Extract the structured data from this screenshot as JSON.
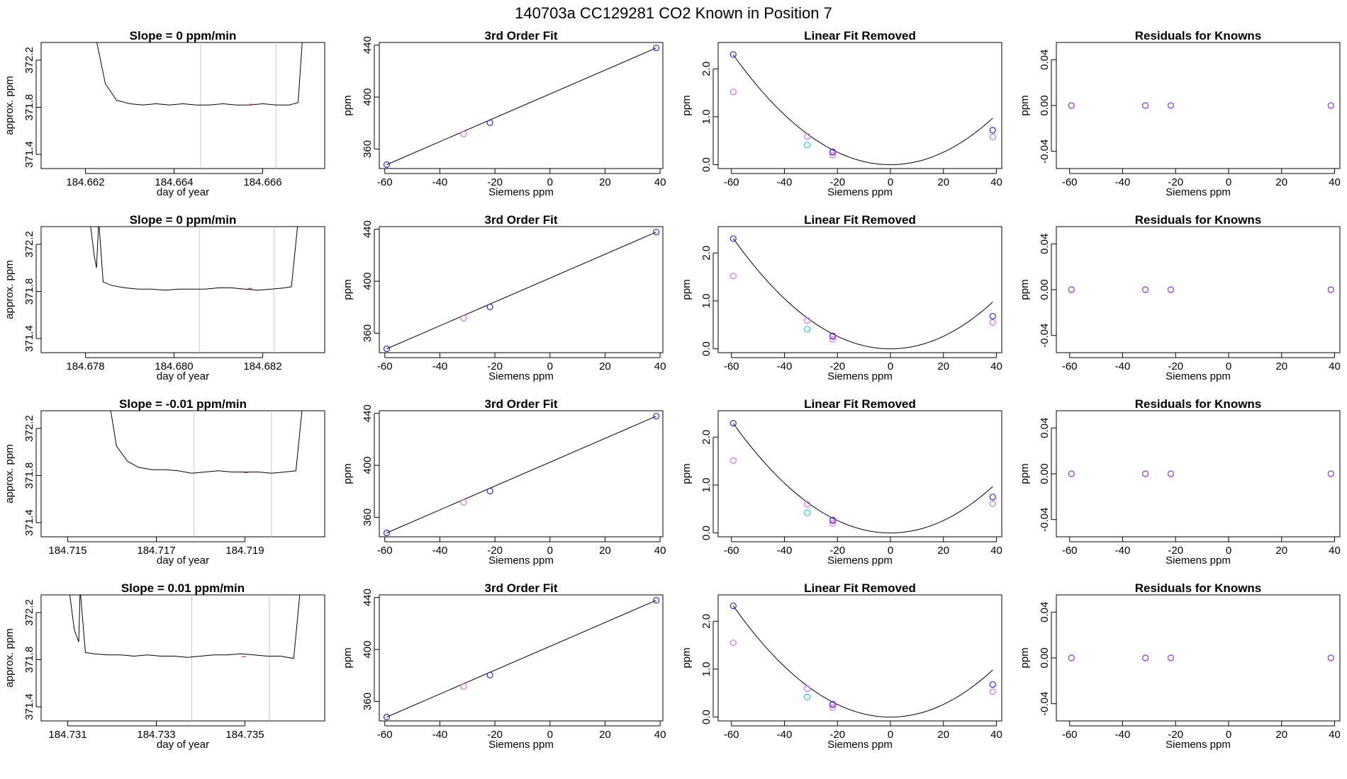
{
  "figure_title": "140703a      CC129281    CO2 Known in Position  7",
  "colors": {
    "line": "#000000",
    "vline": "#c8c8c8",
    "blue": "#2828d8",
    "magenta": "#d070e8",
    "cyan": "#30c0d8",
    "purple": "#9030d8",
    "red": "#e04040"
  },
  "chart_data": [
    {
      "type": "line",
      "title": "Slope =  0  ppm/min",
      "xlabel": "day of year",
      "ylabel": "approx. ppm",
      "xlim": [
        184.661,
        184.6674
      ],
      "ylim": [
        371.28,
        372.35
      ],
      "xticks": [
        184.662,
        184.664,
        184.666
      ],
      "xtick_labels": [
        "184.662",
        "184.664",
        "184.666"
      ],
      "yticks": [
        371.4,
        371.8,
        372.2
      ],
      "ytick_labels": [
        "371.4",
        "371.8",
        "372.2"
      ],
      "vlines": [
        184.6646,
        184.6663
      ],
      "x": [
        184.66223,
        184.66245,
        184.6627,
        184.663,
        184.6633,
        184.6636,
        184.6639,
        184.6642,
        184.6645,
        184.6648,
        184.6651,
        184.6654,
        184.6657,
        184.666,
        184.6663,
        184.6666,
        184.6668,
        184.6669
      ],
      "y": [
        372.4,
        372.0,
        371.86,
        371.83,
        371.82,
        371.83,
        371.82,
        371.83,
        371.82,
        371.82,
        371.83,
        371.82,
        371.82,
        371.83,
        371.82,
        371.82,
        371.84,
        372.4
      ]
    },
    {
      "type": "scatter",
      "title": "3rd Order Fit",
      "xlabel": "Siemens ppm",
      "ylabel": "ppm",
      "xlim": [
        -62,
        41
      ],
      "ylim": [
        345,
        442
      ],
      "xticks": [
        -60,
        -40,
        -20,
        0,
        20,
        40
      ],
      "xtick_labels": [
        "-60",
        "-40",
        "-20",
        "0",
        "20",
        "40"
      ],
      "yticks": [
        360,
        400,
        440
      ],
      "ytick_labels": [
        "360",
        "400",
        "440"
      ],
      "series": [
        {
          "color": "blue",
          "x": [
            -59.3,
            -21.8,
            38.6
          ],
          "y": [
            348.0,
            380.2,
            437.8
          ]
        },
        {
          "color": "magenta",
          "x": [
            -31.4
          ],
          "y": [
            371.6
          ]
        }
      ],
      "fit_line": {
        "x": [
          -59.3,
          38.6
        ],
        "y": [
          348.0,
          437.8
        ]
      }
    },
    {
      "type": "scatter",
      "title": "Linear Fit Removed",
      "xlabel": "Siemens ppm",
      "ylabel": "ppm",
      "xlim": [
        -65,
        42
      ],
      "ylim": [
        -0.08,
        2.55
      ],
      "xticks": [
        -60,
        -40,
        -20,
        0,
        20,
        40
      ],
      "xtick_labels": [
        "-60",
        "-40",
        "-20",
        "0",
        "20",
        "40"
      ],
      "yticks": [
        0.0,
        1.0,
        2.0
      ],
      "ytick_labels": [
        "0.0",
        "1.0",
        "2.0"
      ],
      "series": [
        {
          "color": "blue",
          "x": [
            -59.3,
            -21.8,
            38.6
          ],
          "y": [
            2.3,
            0.27,
            0.72
          ]
        },
        {
          "color": "magenta",
          "x": [
            -59.3,
            -31.4,
            -21.8,
            38.6
          ],
          "y": [
            1.52,
            0.59,
            0.2,
            0.58
          ]
        },
        {
          "color": "cyan",
          "x": [
            -31.4
          ],
          "y": [
            0.41
          ]
        },
        {
          "color": "purple",
          "x": [
            -21.8
          ],
          "y": [
            0.26
          ]
        }
      ],
      "curve_a": 0.000652
    },
    {
      "type": "scatter",
      "title": "Residuals for Knowns",
      "xlabel": "Siemens ppm",
      "ylabel": "ppm",
      "xlim": [
        -65,
        42
      ],
      "ylim": [
        -0.055,
        0.055
      ],
      "xticks": [
        -60,
        -40,
        -20,
        0,
        20,
        40
      ],
      "xtick_labels": [
        "-60",
        "-40",
        "-20",
        "0",
        "20",
        "40"
      ],
      "yticks": [
        -0.04,
        0.0,
        0.04
      ],
      "ytick_labels": [
        "-0.04",
        "0.00",
        "0.04"
      ],
      "series": [
        {
          "color": "purple",
          "x": [
            -59.3,
            -31.4,
            -21.8,
            38.6
          ],
          "y": [
            0,
            0,
            0,
            0
          ]
        }
      ]
    },
    {
      "type": "line",
      "title": "Slope =  0  ppm/min",
      "xlabel": "day of year",
      "ylabel": "approx. ppm",
      "xlim": [
        184.677,
        184.6834
      ],
      "ylim": [
        371.28,
        372.35
      ],
      "xticks": [
        184.678,
        184.68,
        184.682
      ],
      "xtick_labels": [
        "184.678",
        "184.680",
        "184.682"
      ],
      "yticks": [
        371.4,
        371.8,
        372.2
      ],
      "ytick_labels": [
        "371.4",
        "371.8",
        "372.2"
      ],
      "vlines": [
        184.68057,
        184.68226
      ],
      "x": [
        184.6781,
        184.6782,
        184.67825,
        184.6783,
        184.6784,
        184.6786,
        184.6789,
        184.6792,
        184.6795,
        184.6798,
        184.6801,
        184.6804,
        184.6807,
        184.681,
        184.6813,
        184.6816,
        184.6819,
        184.6822,
        184.6825,
        184.68265,
        184.6828
      ],
      "y": [
        372.4,
        372.1,
        372.0,
        372.4,
        371.88,
        371.85,
        371.83,
        371.82,
        371.82,
        371.81,
        371.82,
        371.82,
        371.82,
        371.83,
        371.83,
        371.82,
        371.81,
        371.82,
        371.83,
        371.84,
        372.4
      ]
    },
    {
      "type": "scatter",
      "title": "3rd Order Fit",
      "xlabel": "Siemens ppm",
      "ylabel": "ppm",
      "xlim": [
        -62,
        41
      ],
      "ylim": [
        345,
        442
      ],
      "xticks": [
        -60,
        -40,
        -20,
        0,
        20,
        40
      ],
      "xtick_labels": [
        "-60",
        "-40",
        "-20",
        "0",
        "20",
        "40"
      ],
      "yticks": [
        360,
        400,
        440
      ],
      "ytick_labels": [
        "360",
        "400",
        "440"
      ],
      "series": [
        {
          "color": "blue",
          "x": [
            -59.3,
            -21.8,
            38.6
          ],
          "y": [
            348.0,
            380.2,
            437.8
          ]
        },
        {
          "color": "magenta",
          "x": [
            -31.4
          ],
          "y": [
            371.6
          ]
        }
      ],
      "fit_line": {
        "x": [
          -59.3,
          38.6
        ],
        "y": [
          348.0,
          437.8
        ]
      }
    },
    {
      "type": "scatter",
      "title": "Linear Fit Removed",
      "xlabel": "Siemens ppm",
      "ylabel": "ppm",
      "xlim": [
        -65,
        42
      ],
      "ylim": [
        -0.08,
        2.55
      ],
      "xticks": [
        -60,
        -40,
        -20,
        0,
        20,
        40
      ],
      "xtick_labels": [
        "-60",
        "-40",
        "-20",
        "0",
        "20",
        "40"
      ],
      "yticks": [
        0.0,
        1.0,
        2.0
      ],
      "ytick_labels": [
        "0.0",
        "1.0",
        "2.0"
      ],
      "series": [
        {
          "color": "blue",
          "x": [
            -59.3,
            -21.8,
            38.6
          ],
          "y": [
            2.3,
            0.27,
            0.68
          ]
        },
        {
          "color": "magenta",
          "x": [
            -59.3,
            -31.4,
            -21.8,
            38.6
          ],
          "y": [
            1.52,
            0.59,
            0.2,
            0.55
          ]
        },
        {
          "color": "cyan",
          "x": [
            -31.4
          ],
          "y": [
            0.41
          ]
        },
        {
          "color": "purple",
          "x": [
            -21.8
          ],
          "y": [
            0.26
          ]
        }
      ],
      "curve_a": 0.000655
    },
    {
      "type": "scatter",
      "title": "Residuals for Knowns",
      "xlabel": "Siemens ppm",
      "ylabel": "ppm",
      "xlim": [
        -65,
        42
      ],
      "ylim": [
        -0.055,
        0.055
      ],
      "xticks": [
        -60,
        -40,
        -20,
        0,
        20,
        40
      ],
      "xtick_labels": [
        "-60",
        "-40",
        "-20",
        "0",
        "20",
        "40"
      ],
      "yticks": [
        -0.04,
        0.0,
        0.04
      ],
      "ytick_labels": [
        "-0.04",
        "0.00",
        "0.04"
      ],
      "series": [
        {
          "color": "purple",
          "x": [
            -59.3,
            -31.4,
            -21.8,
            38.6
          ],
          "y": [
            0,
            0,
            0,
            0
          ]
        }
      ]
    },
    {
      "type": "line",
      "title": "Slope =  -0.01  ppm/min",
      "xlabel": "day of year",
      "ylabel": "approx. ppm",
      "xlim": [
        184.7144,
        184.7208
      ],
      "ylim": [
        371.28,
        372.35
      ],
      "xticks": [
        184.715,
        184.717,
        184.719
      ],
      "xtick_labels": [
        "184.715",
        "184.717",
        "184.719"
      ],
      "yticks": [
        371.4,
        371.8,
        372.2
      ],
      "ytick_labels": [
        "371.4",
        "371.8",
        "372.2"
      ],
      "vlines": [
        184.71785,
        184.7196
      ],
      "x": [
        184.71595,
        184.7161,
        184.71635,
        184.7166,
        184.7169,
        184.7172,
        184.7175,
        184.7178,
        184.7181,
        184.7184,
        184.7187,
        184.719,
        184.7193,
        184.7196,
        184.7199,
        184.72015,
        184.7203
      ],
      "y": [
        372.4,
        372.05,
        371.92,
        371.87,
        371.85,
        371.85,
        371.84,
        371.82,
        371.83,
        371.84,
        371.83,
        371.83,
        371.83,
        371.82,
        371.83,
        371.84,
        372.4
      ]
    },
    {
      "type": "scatter",
      "title": "3rd Order Fit",
      "xlabel": "Siemens ppm",
      "ylabel": "ppm",
      "xlim": [
        -62,
        41
      ],
      "ylim": [
        345,
        442
      ],
      "xticks": [
        -60,
        -40,
        -20,
        0,
        20,
        40
      ],
      "xtick_labels": [
        "-60",
        "-40",
        "-20",
        "0",
        "20",
        "40"
      ],
      "yticks": [
        360,
        400,
        440
      ],
      "ytick_labels": [
        "360",
        "400",
        "440"
      ],
      "series": [
        {
          "color": "blue",
          "x": [
            -59.3,
            -21.8,
            38.6
          ],
          "y": [
            348.0,
            380.2,
            437.8
          ]
        },
        {
          "color": "magenta",
          "x": [
            -31.4
          ],
          "y": [
            371.6
          ]
        }
      ],
      "fit_line": {
        "x": [
          -59.3,
          38.6
        ],
        "y": [
          348.0,
          437.8
        ]
      }
    },
    {
      "type": "scatter",
      "title": "Linear Fit Removed",
      "xlabel": "Siemens ppm",
      "ylabel": "ppm",
      "xlim": [
        -65,
        42
      ],
      "ylim": [
        -0.08,
        2.55
      ],
      "xticks": [
        -60,
        -40,
        -20,
        0,
        20,
        40
      ],
      "xtick_labels": [
        "-60",
        "-40",
        "-20",
        "0",
        "20",
        "40"
      ],
      "yticks": [
        0.0,
        1.0,
        2.0
      ],
      "ytick_labels": [
        "0.0",
        "1.0",
        "2.0"
      ],
      "series": [
        {
          "color": "blue",
          "x": [
            -59.3,
            -21.8,
            38.6
          ],
          "y": [
            2.29,
            0.27,
            0.75
          ]
        },
        {
          "color": "magenta",
          "x": [
            -59.3,
            -31.4,
            -21.8,
            38.6
          ],
          "y": [
            1.51,
            0.6,
            0.2,
            0.61
          ]
        },
        {
          "color": "cyan",
          "x": [
            -31.4
          ],
          "y": [
            0.42
          ]
        },
        {
          "color": "purple",
          "x": [
            -21.8
          ],
          "y": [
            0.26
          ]
        }
      ],
      "curve_a": 0.00065
    },
    {
      "type": "scatter",
      "title": "Residuals for Knowns",
      "xlabel": "Siemens ppm",
      "ylabel": "ppm",
      "xlim": [
        -65,
        42
      ],
      "ylim": [
        -0.055,
        0.055
      ],
      "xticks": [
        -60,
        -40,
        -20,
        0,
        20,
        40
      ],
      "xtick_labels": [
        "-60",
        "-40",
        "-20",
        "0",
        "20",
        "40"
      ],
      "yticks": [
        -0.04,
        0.0,
        0.04
      ],
      "ytick_labels": [
        "-0.04",
        "0.00",
        "0.04"
      ],
      "series": [
        {
          "color": "purple",
          "x": [
            -59.3,
            -31.4,
            -21.8,
            38.6
          ],
          "y": [
            0,
            0,
            0,
            0
          ]
        }
      ]
    },
    {
      "type": "line",
      "title": "Slope =  0.01  ppm/min",
      "xlabel": "day of year",
      "ylabel": "approx. ppm",
      "xlim": [
        184.7304,
        184.7368
      ],
      "ylim": [
        371.28,
        372.35
      ],
      "xticks": [
        184.731,
        184.733,
        184.735
      ],
      "xtick_labels": [
        "184.731",
        "184.733",
        "184.735"
      ],
      "yticks": [
        371.4,
        371.8,
        372.2
      ],
      "ytick_labels": [
        "371.4",
        "371.8",
        "372.2"
      ],
      "vlines": [
        184.7338,
        184.73555
      ],
      "x": [
        184.73103,
        184.73115,
        184.73125,
        184.73128,
        184.7314,
        184.7316,
        184.7319,
        184.7322,
        184.7325,
        184.7328,
        184.7331,
        184.7334,
        184.7337,
        184.734,
        184.7343,
        184.7346,
        184.7349,
        184.7352,
        184.7355,
        184.7358,
        184.7361,
        184.73625
      ],
      "y": [
        372.4,
        372.05,
        371.95,
        372.4,
        371.86,
        371.85,
        371.84,
        371.84,
        371.83,
        371.84,
        371.83,
        371.83,
        371.82,
        371.83,
        371.84,
        371.84,
        371.85,
        371.84,
        371.83,
        371.83,
        371.81,
        372.4
      ]
    },
    {
      "type": "scatter",
      "title": "3rd Order Fit",
      "xlabel": "Siemens ppm",
      "ylabel": "ppm",
      "xlim": [
        -62,
        41
      ],
      "ylim": [
        345,
        442
      ],
      "xticks": [
        -60,
        -40,
        -20,
        0,
        20,
        40
      ],
      "xtick_labels": [
        "-60",
        "-40",
        "-20",
        "0",
        "20",
        "40"
      ],
      "yticks": [
        360,
        400,
        440
      ],
      "ytick_labels": [
        "360",
        "400",
        "440"
      ],
      "series": [
        {
          "color": "blue",
          "x": [
            -59.3,
            -21.8,
            38.6
          ],
          "y": [
            348.0,
            380.2,
            437.8
          ]
        },
        {
          "color": "magenta",
          "x": [
            -31.4
          ],
          "y": [
            371.6
          ]
        }
      ],
      "fit_line": {
        "x": [
          -59.3,
          38.6
        ],
        "y": [
          348.0,
          437.8
        ]
      }
    },
    {
      "type": "scatter",
      "title": "Linear Fit Removed",
      "xlabel": "Siemens ppm",
      "ylabel": "ppm",
      "xlim": [
        -65,
        42
      ],
      "ylim": [
        -0.08,
        2.55
      ],
      "xticks": [
        -60,
        -40,
        -20,
        0,
        20,
        40
      ],
      "xtick_labels": [
        "-60",
        "-40",
        "-20",
        "0",
        "20",
        "40"
      ],
      "yticks": [
        0.0,
        1.0,
        2.0
      ],
      "ytick_labels": [
        "0.0",
        "1.0",
        "2.0"
      ],
      "series": [
        {
          "color": "blue",
          "x": [
            -59.3,
            -21.8,
            38.6
          ],
          "y": [
            2.32,
            0.27,
            0.68
          ]
        },
        {
          "color": "magenta",
          "x": [
            -59.3,
            -31.4,
            -21.8,
            38.6
          ],
          "y": [
            1.55,
            0.59,
            0.2,
            0.53
          ]
        },
        {
          "color": "cyan",
          "x": [
            -31.4
          ],
          "y": [
            0.42
          ]
        },
        {
          "color": "purple",
          "x": [
            -21.8
          ],
          "y": [
            0.26
          ]
        }
      ],
      "curve_a": 0.00066
    },
    {
      "type": "scatter",
      "title": "Residuals for Knowns",
      "xlabel": "Siemens ppm",
      "ylabel": "ppm",
      "xlim": [
        -65,
        42
      ],
      "ylim": [
        -0.055,
        0.055
      ],
      "xticks": [
        -60,
        -40,
        -20,
        0,
        20,
        40
      ],
      "xtick_labels": [
        "-60",
        "-40",
        "-20",
        "0",
        "20",
        "40"
      ],
      "yticks": [
        -0.04,
        0.0,
        0.04
      ],
      "ytick_labels": [
        "-0.04",
        "0.00",
        "0.04"
      ],
      "series": [
        {
          "color": "purple",
          "x": [
            -59.3,
            -31.4,
            -21.8,
            38.6
          ],
          "y": [
            0,
            0,
            0,
            0
          ]
        }
      ]
    }
  ]
}
